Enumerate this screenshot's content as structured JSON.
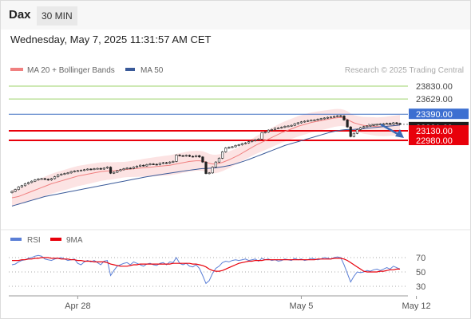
{
  "header": {
    "symbol": "Dax",
    "timeframe": "30 MIN"
  },
  "datetime": "Wednesday, May 7, 2025 11:31:57 AM CET",
  "watermark": "Research © 2025 Trading Central",
  "colors": {
    "support": "#e8000b",
    "resistance": "#4472c4",
    "target": "#9ed36a",
    "ma20": "#f08080",
    "ma50": "#3a5a99",
    "rsi": "#5b7fd6",
    "rsi_ma": "#e8000b",
    "arrow": "#3a6ab5",
    "band": "#fbd9d9"
  },
  "chart_data": [
    {
      "type": "candlestick",
      "legend": [
        {
          "name": "MA 20 + Bollinger Bands"
        },
        {
          "name": "MA 50"
        }
      ],
      "ylim": [
        22500,
        24050
      ],
      "x_ticks": [
        {
          "label": "Apr 28",
          "idx": 20
        },
        {
          "label": "May 5",
          "idx": 88
        },
        {
          "label": "May 12",
          "idx": 123
        }
      ],
      "levels": [
        {
          "value": 23830.0,
          "label": "23830.00",
          "kind": "target"
        },
        {
          "value": 23629.0,
          "label": "23629.00",
          "kind": "target"
        },
        {
          "value": 23390.0,
          "label": "23390.00",
          "kind": "resistance"
        },
        {
          "value": 23231.69,
          "label": "23231.69",
          "kind": "last"
        },
        {
          "value": 23130.0,
          "label": "23130.00",
          "kind": "support"
        },
        {
          "value": 22980.0,
          "label": "22980.00",
          "kind": "support"
        }
      ],
      "close": [
        22180,
        22210,
        22250,
        22270,
        22300,
        22320,
        22340,
        22360,
        22375,
        22380,
        22370,
        22360,
        22380,
        22410,
        22440,
        22450,
        22460,
        22470,
        22490,
        22500,
        22505,
        22510,
        22520,
        22530,
        22525,
        22535,
        22540,
        22530,
        22545,
        22560,
        22465,
        22480,
        22505,
        22520,
        22535,
        22545,
        22540,
        22560,
        22575,
        22590,
        22580,
        22600,
        22610,
        22605,
        22600,
        22620,
        22630,
        22625,
        22640,
        22650,
        22750,
        22740,
        22735,
        22745,
        22730,
        22725,
        22740,
        22720,
        22640,
        22460,
        22470,
        22560,
        22640,
        22700,
        22800,
        22860,
        22870,
        22880,
        22900,
        22910,
        22930,
        22940,
        22960,
        22975,
        22990,
        23000,
        23100,
        23110,
        23140,
        23150,
        23170,
        23175,
        23185,
        23200,
        23205,
        23215,
        23240,
        23255,
        23270,
        23280,
        23290,
        23295,
        23300,
        23310,
        23320,
        23330,
        23340,
        23345,
        23355,
        23365,
        23362,
        23300,
        23190,
        23040,
        23090,
        23150,
        23180,
        23195,
        23205,
        23215,
        23225,
        23230,
        23235,
        23240,
        23245,
        23235,
        23255,
        23245,
        23232
      ],
      "ma20": [
        22080,
        22090,
        22100,
        22120,
        22140,
        22160,
        22180,
        22200,
        22220,
        22240,
        22260,
        22280,
        22300,
        22315,
        22330,
        22345,
        22360,
        22375,
        22390,
        22405,
        22420,
        22430,
        22440,
        22450,
        22460,
        22470,
        22480,
        22490,
        22495,
        22500,
        22500,
        22505,
        22510,
        22515,
        22520,
        22525,
        22530,
        22535,
        22540,
        22545,
        22550,
        22555,
        22560,
        22565,
        22570,
        22575,
        22580,
        22585,
        22590,
        22600,
        22610,
        22620,
        22630,
        22640,
        22650,
        22655,
        22660,
        22660,
        22655,
        22640,
        22620,
        22610,
        22610,
        22620,
        22635,
        22655,
        22675,
        22700,
        22725,
        22750,
        22780,
        22810,
        22840,
        22870,
        22900,
        22925,
        22950,
        22975,
        23000,
        23025,
        23050,
        23075,
        23100,
        23120,
        23140,
        23160,
        23180,
        23200,
        23215,
        23230,
        23245,
        23260,
        23270,
        23280,
        23290,
        23300,
        23310,
        23320,
        23330,
        23335,
        23338,
        23330,
        23310,
        23280,
        23255,
        23240,
        23225,
        23215,
        23210,
        23205,
        23200,
        23195,
        23195,
        23195,
        23200,
        23205,
        23210,
        23215,
        23220
      ],
      "ma50": [
        21950,
        21965,
        21980,
        21995,
        22010,
        22025,
        22040,
        22055,
        22070,
        22085,
        22100,
        22110,
        22120,
        22130,
        22140,
        22150,
        22160,
        22170,
        22180,
        22190,
        22200,
        22210,
        22220,
        22230,
        22240,
        22250,
        22260,
        22270,
        22280,
        22290,
        22300,
        22310,
        22320,
        22330,
        22340,
        22350,
        22360,
        22370,
        22380,
        22390,
        22400,
        22410,
        22418,
        22426,
        22434,
        22442,
        22450,
        22458,
        22466,
        22474,
        22482,
        22490,
        22498,
        22505,
        22512,
        22519,
        22526,
        22533,
        22538,
        22540,
        22542,
        22545,
        22550,
        22558,
        22566,
        22575,
        22585,
        22598,
        22612,
        22628,
        22645,
        22662,
        22680,
        22700,
        22720,
        22740,
        22760,
        22780,
        22800,
        22820,
        22840,
        22860,
        22880,
        22900,
        22915,
        22930,
        22945,
        22960,
        22975,
        22990,
        23005,
        23020,
        23035,
        23050,
        23065,
        23080,
        23095,
        23110,
        23120,
        23130,
        23140,
        23145,
        23150,
        23150,
        23152,
        23156,
        23160,
        23165,
        23170,
        23175,
        23180,
        23185,
        23190,
        23195,
        23200,
        23205,
        23210,
        23215,
        23220
      ]
    },
    {
      "type": "line",
      "legend": [
        {
          "name": "RSI"
        },
        {
          "name": "9MA"
        }
      ],
      "ylim": [
        20,
        80
      ],
      "y_ticks": [
        70,
        50,
        30
      ],
      "rsi": [
        60,
        61,
        64,
        66,
        67,
        69,
        70,
        72,
        73,
        72,
        68,
        67,
        66,
        68,
        69,
        70,
        68,
        66,
        67,
        68,
        62,
        60,
        64,
        66,
        64,
        66,
        63,
        60,
        65,
        66,
        45,
        52,
        58,
        60,
        62,
        63,
        60,
        64,
        62,
        60,
        58,
        61,
        62,
        60,
        59,
        62,
        63,
        60,
        64,
        63,
        70,
        62,
        60,
        62,
        58,
        57,
        60,
        55,
        45,
        34,
        38,
        48,
        55,
        58,
        63,
        65,
        64,
        66,
        67,
        66,
        67,
        68,
        66,
        67,
        68,
        65,
        69,
        67,
        68,
        66,
        67,
        65,
        66,
        68,
        67,
        66,
        69,
        67,
        68,
        66,
        67,
        69,
        68,
        67,
        68,
        70,
        69,
        68,
        70,
        71,
        70,
        60,
        48,
        36,
        44,
        50,
        49,
        50,
        52,
        51,
        53,
        54,
        52,
        54,
        56,
        54,
        58,
        56,
        54
      ],
      "ma9": [
        66,
        66,
        66,
        67,
        67,
        68,
        68,
        69,
        69,
        70,
        70,
        70,
        69,
        69,
        69,
        68,
        68,
        68,
        67,
        67,
        66,
        66,
        65,
        65,
        65,
        64,
        64,
        64,
        64,
        63,
        61,
        60,
        59,
        58,
        58,
        58,
        59,
        60,
        60,
        61,
        61,
        61,
        61,
        61,
        61,
        61,
        61,
        61,
        61,
        62,
        62,
        62,
        62,
        62,
        62,
        61,
        61,
        60,
        59,
        57,
        54,
        52,
        51,
        51,
        52,
        54,
        56,
        58,
        60,
        62,
        63,
        64,
        65,
        65,
        66,
        66,
        66,
        67,
        67,
        67,
        67,
        67,
        67,
        67,
        67,
        67,
        67,
        67,
        67,
        67,
        67,
        67,
        67,
        68,
        68,
        68,
        68,
        68,
        69,
        69,
        69,
        68,
        66,
        63,
        60,
        57,
        54,
        51,
        50,
        50,
        50,
        50,
        51,
        51,
        52,
        53,
        53,
        54,
        54
      ]
    }
  ]
}
